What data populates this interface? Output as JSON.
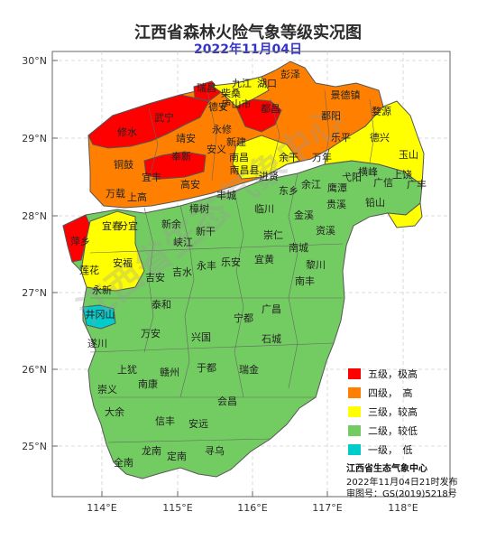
{
  "map": {
    "title": "江西省森林火险气象等级实况图",
    "date": "2022年11月04日",
    "lat_labels": [
      "30°N",
      "29°N",
      "28°N",
      "27°N",
      "26°N",
      "25°N"
    ],
    "lon_labels": [
      "114°E",
      "115°E",
      "116°E",
      "117°E",
      "118°E"
    ],
    "watermark": "江西省生态气象中心"
  },
  "legend": {
    "items": [
      {
        "label": "五级，极高",
        "color": "#ff0000"
      },
      {
        "label": "四级，　高",
        "color": "#ff8000"
      },
      {
        "label": "三级，较高",
        "color": "#ffff00"
      },
      {
        "label": "二级，较低",
        "color": "#73cc61"
      },
      {
        "label": "一级，　低",
        "color": "#00cccc"
      }
    ]
  },
  "footer": {
    "org": "江西省生态气象中心",
    "issued": "2022年11月04日21时发布",
    "review_no": "审图号：GS(2019)5218号"
  },
  "places": [
    {
      "name": "彭泽"
    },
    {
      "name": "九江"
    },
    {
      "name": "湖口"
    },
    {
      "name": "瑞昌"
    },
    {
      "name": "柴桑"
    },
    {
      "name": "庐山市"
    },
    {
      "name": "景德镇"
    },
    {
      "name": "武宁"
    },
    {
      "name": "德安"
    },
    {
      "name": "都昌"
    },
    {
      "name": "鄱阳"
    },
    {
      "name": "婺源"
    },
    {
      "name": "修水"
    },
    {
      "name": "永修"
    },
    {
      "name": "靖安"
    },
    {
      "name": "新建"
    },
    {
      "name": "乐平"
    },
    {
      "name": "德兴"
    },
    {
      "name": "奉新"
    },
    {
      "name": "安义"
    },
    {
      "name": "南昌"
    },
    {
      "name": "余干"
    },
    {
      "name": "万年"
    },
    {
      "name": "玉山"
    },
    {
      "name": "铜鼓"
    },
    {
      "name": "宜丰"
    },
    {
      "name": "南昌县"
    },
    {
      "name": "横峰"
    },
    {
      "name": "上饶"
    },
    {
      "name": "进贤"
    },
    {
      "name": "弋阳"
    },
    {
      "name": "广信"
    },
    {
      "name": "广丰"
    },
    {
      "name": "万载"
    },
    {
      "name": "高安"
    },
    {
      "name": "东乡"
    },
    {
      "name": "余江"
    },
    {
      "name": "上高"
    },
    {
      "name": "丰城"
    },
    {
      "name": "鹰潭"
    },
    {
      "name": "铅山"
    },
    {
      "name": "贵溪"
    },
    {
      "name": "樟树"
    },
    {
      "name": "临川"
    },
    {
      "name": "分宜"
    },
    {
      "name": "金溪"
    },
    {
      "name": "萍乡"
    },
    {
      "name": "宜春"
    },
    {
      "name": "新余"
    },
    {
      "name": "新干"
    },
    {
      "name": "崇仁"
    },
    {
      "name": "资溪"
    },
    {
      "name": "峡江"
    },
    {
      "name": "南城"
    },
    {
      "name": "安福"
    },
    {
      "name": "乐安"
    },
    {
      "name": "宜黄"
    },
    {
      "name": "黎川"
    },
    {
      "name": "永丰"
    },
    {
      "name": "莲花"
    },
    {
      "name": "吉安"
    },
    {
      "name": "吉水"
    },
    {
      "name": "南丰"
    },
    {
      "name": "永新"
    },
    {
      "name": "泰和"
    },
    {
      "name": "广昌"
    },
    {
      "name": "井冈山"
    },
    {
      "name": "宁都"
    },
    {
      "name": "万安"
    },
    {
      "name": "兴国"
    },
    {
      "name": "石城"
    },
    {
      "name": "遂川"
    },
    {
      "name": "上犹"
    },
    {
      "name": "赣州"
    },
    {
      "name": "于都"
    },
    {
      "name": "瑞金"
    },
    {
      "name": "南康"
    },
    {
      "name": "崇义"
    },
    {
      "name": "会昌"
    },
    {
      "name": "大余"
    },
    {
      "name": "信丰"
    },
    {
      "name": "安远"
    },
    {
      "name": "龙南"
    },
    {
      "name": "寻乌"
    },
    {
      "name": "全南"
    },
    {
      "name": "定南"
    }
  ]
}
